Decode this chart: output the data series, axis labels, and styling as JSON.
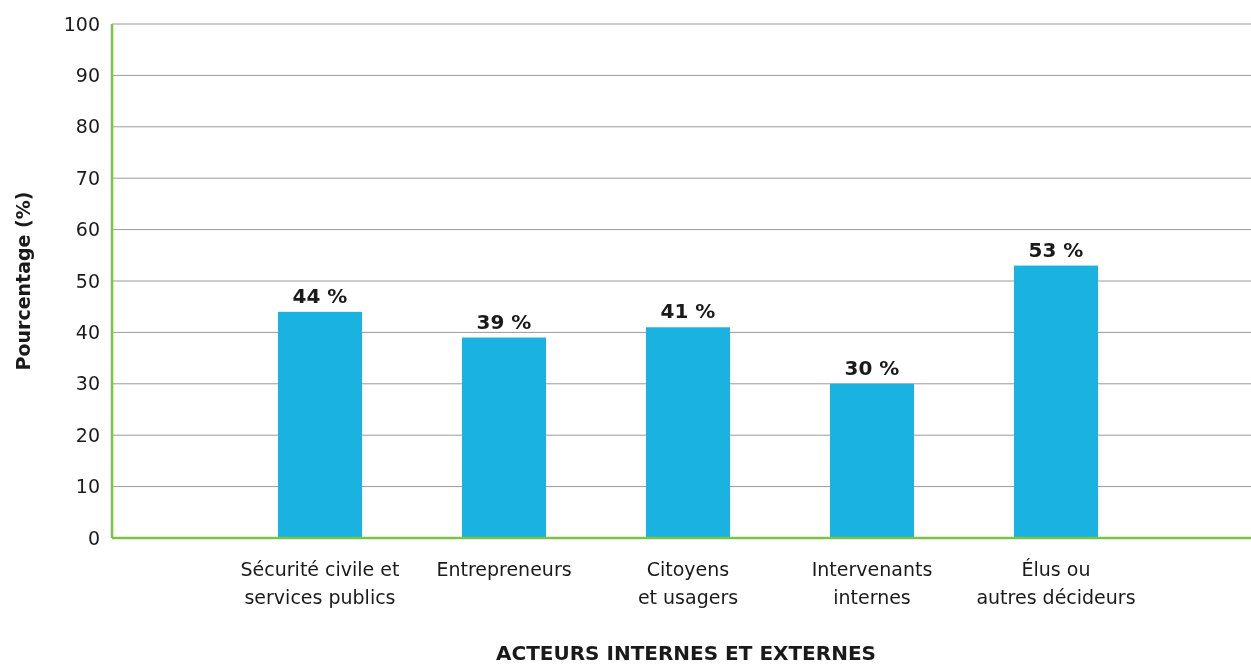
{
  "chart_data": {
    "type": "bar",
    "xlabel": "ACTEURS INTERNES ET EXTERNES",
    "ylabel": "Pourcentage (%)",
    "categories": [
      "Sécurité civile et\nservices publics",
      "Entrepreneurs",
      "Citoyens\net usagers",
      "Intervenants\ninternes",
      "Élus ou\nautres décideurs"
    ],
    "values": [
      44,
      39,
      41,
      30,
      53
    ],
    "value_labels": [
      "44 %",
      "39 %",
      "41 %",
      "30 %",
      "53 %"
    ],
    "color": "#1ab2e0",
    "ylim": [
      0,
      100
    ],
    "yticks": [
      0,
      10,
      20,
      30,
      40,
      50,
      60,
      70,
      80,
      90,
      100
    ],
    "grid": "y"
  }
}
